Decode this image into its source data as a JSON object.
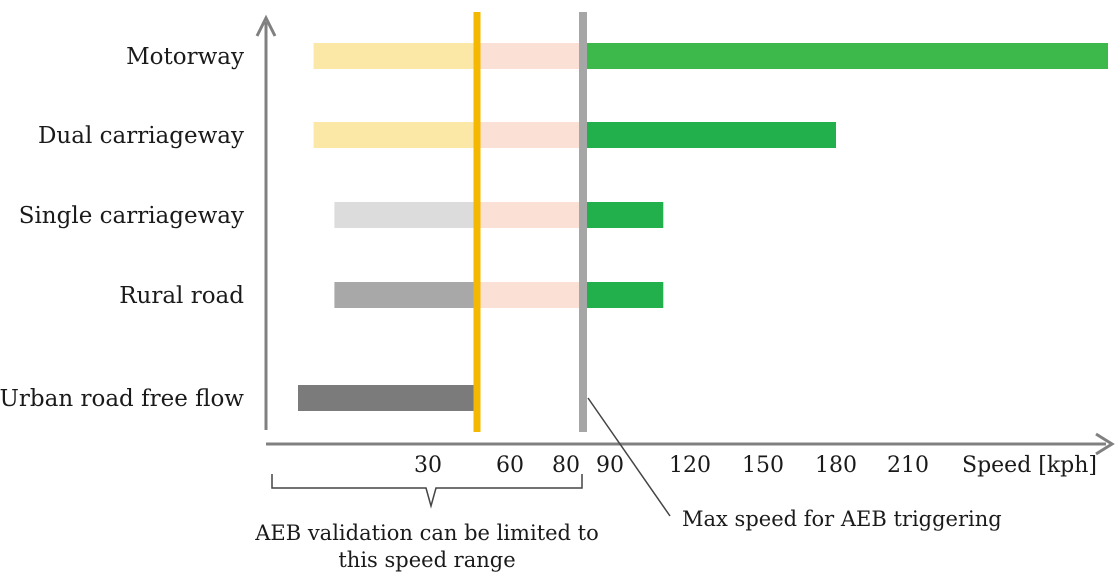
{
  "chart_data": {
    "type": "bar",
    "xlabel": "Speed [kph]",
    "categories": [
      "Motorway",
      "Dual carriageway",
      "Single carriageway",
      "Rural road",
      "Urban road free flow"
    ],
    "x_ticks": [
      "30",
      "60",
      "80",
      "90",
      "120",
      "150",
      "180",
      "210"
    ],
    "bars": [
      {
        "category": "Motorway",
        "segments": [
          {
            "from": 8,
            "to": 48,
            "color": "#fbe7a6"
          },
          {
            "from": 48,
            "to": 85,
            "color": "#fbe0d6"
          },
          {
            "from": 85,
            "to": 260,
            "color": "#3db84a"
          }
        ]
      },
      {
        "category": "Dual carriageway",
        "segments": [
          {
            "from": 8,
            "to": 48,
            "color": "#fbe7a6"
          },
          {
            "from": 48,
            "to": 85,
            "color": "#fbe0d6"
          },
          {
            "from": 85,
            "to": 180,
            "color": "#21b04b"
          }
        ]
      },
      {
        "category": "Single carriageway",
        "segments": [
          {
            "from": 12,
            "to": 48,
            "color": "#dcdcdc"
          },
          {
            "from": 48,
            "to": 85,
            "color": "#fbe0d6"
          },
          {
            "from": 85,
            "to": 110,
            "color": "#21b04b"
          }
        ]
      },
      {
        "category": "Rural road",
        "segments": [
          {
            "from": 12,
            "to": 48,
            "color": "#a8a8a8"
          },
          {
            "from": 48,
            "to": 85,
            "color": "#fbe0d6"
          },
          {
            "from": 85,
            "to": 110,
            "color": "#21b04b"
          }
        ]
      },
      {
        "category": "Urban road free flow",
        "segments": [
          {
            "from": 5,
            "to": 48,
            "color": "#7b7b7b"
          }
        ]
      }
    ],
    "reference_lines": [
      {
        "x": 48,
        "color": "#f5b800"
      },
      {
        "x": 85,
        "color": "#a6a6a6"
      }
    ],
    "annotations": {
      "bracket_line1": "AEB validation can be limited to",
      "bracket_line2": "this speed range",
      "max_speed": "Max speed for AEB triggering"
    }
  }
}
